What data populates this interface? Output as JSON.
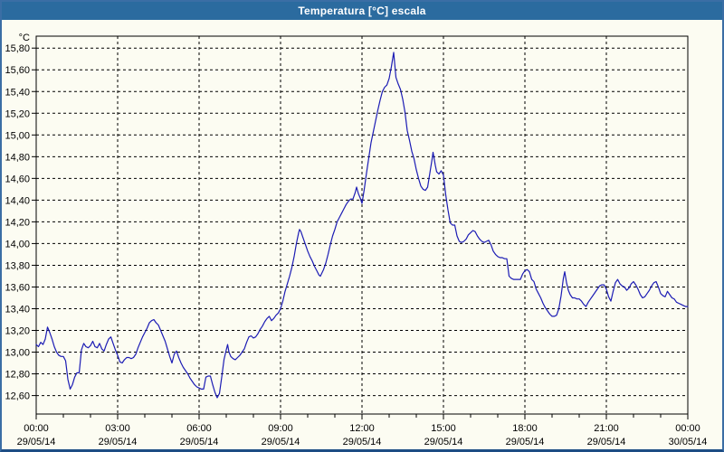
{
  "window": {
    "title": "Temperatura [°C] escala"
  },
  "chart_data": {
    "type": "line",
    "title": "Temperatura [°C] escala",
    "y_unit_label": "°C",
    "grid": "dashed",
    "legend": "none",
    "ylim": [
      12.43,
      15.91
    ],
    "xlim_minutes": [
      0,
      1440
    ],
    "x_minor_tick_minutes": 60,
    "y_ticks": {
      "values": [
        15.8,
        15.6,
        15.4,
        15.2,
        15.0,
        14.8,
        14.6,
        14.4,
        14.2,
        14.0,
        13.8,
        13.6,
        13.4,
        13.2,
        13.0,
        12.8,
        12.6
      ],
      "labels": [
        "15,80",
        "15,60",
        "15,40",
        "15,20",
        "15,00",
        "14,80",
        "14,60",
        "14,40",
        "14,20",
        "14,00",
        "13,80",
        "13,60",
        "13,40",
        "13,20",
        "13,00",
        "12,80",
        "12,60"
      ]
    },
    "x_ticks": [
      {
        "minutes": 0,
        "time": "00:00",
        "date": "29/05/14"
      },
      {
        "minutes": 180,
        "time": "03:00",
        "date": "29/05/14"
      },
      {
        "minutes": 360,
        "time": "06:00",
        "date": "29/05/14"
      },
      {
        "minutes": 540,
        "time": "09:00",
        "date": "29/05/14"
      },
      {
        "minutes": 720,
        "time": "12:00",
        "date": "29/05/14"
      },
      {
        "minutes": 900,
        "time": "15:00",
        "date": "29/05/14"
      },
      {
        "minutes": 1080,
        "time": "18:00",
        "date": "29/05/14"
      },
      {
        "minutes": 1260,
        "time": "21:00",
        "date": "29/05/14"
      },
      {
        "minutes": 1440,
        "time": "00:00",
        "date": "30/05/14"
      }
    ],
    "series": [
      {
        "name": "Temperatura",
        "color": "#1c1cb4",
        "points": [
          [
            0,
            13.07
          ],
          [
            5,
            13.05
          ],
          [
            10,
            13.09
          ],
          [
            15,
            13.07
          ],
          [
            20,
            13.12
          ],
          [
            25,
            13.23
          ],
          [
            30,
            13.18
          ],
          [
            35,
            13.12
          ],
          [
            40,
            13.05
          ],
          [
            45,
            13.0
          ],
          [
            50,
            12.97
          ],
          [
            55,
            12.96
          ],
          [
            60,
            12.96
          ],
          [
            65,
            12.92
          ],
          [
            70,
            12.75
          ],
          [
            75,
            12.66
          ],
          [
            80,
            12.7
          ],
          [
            85,
            12.77
          ],
          [
            90,
            12.81
          ],
          [
            95,
            12.81
          ],
          [
            100,
            13.02
          ],
          [
            105,
            13.08
          ],
          [
            110,
            13.05
          ],
          [
            115,
            13.04
          ],
          [
            120,
            13.06
          ],
          [
            125,
            13.1
          ],
          [
            130,
            13.05
          ],
          [
            135,
            13.04
          ],
          [
            140,
            13.08
          ],
          [
            145,
            13.03
          ],
          [
            150,
            13.01
          ],
          [
            155,
            13.07
          ],
          [
            160,
            13.12
          ],
          [
            165,
            13.14
          ],
          [
            170,
            13.08
          ],
          [
            175,
            13.02
          ],
          [
            180,
            12.97
          ],
          [
            185,
            12.91
          ],
          [
            190,
            12.9
          ],
          [
            195,
            12.93
          ],
          [
            200,
            12.95
          ],
          [
            205,
            12.95
          ],
          [
            210,
            12.94
          ],
          [
            215,
            12.95
          ],
          [
            220,
            12.98
          ],
          [
            225,
            13.04
          ],
          [
            230,
            13.09
          ],
          [
            235,
            13.14
          ],
          [
            240,
            13.18
          ],
          [
            245,
            13.22
          ],
          [
            250,
            13.27
          ],
          [
            255,
            13.29
          ],
          [
            260,
            13.3
          ],
          [
            265,
            13.27
          ],
          [
            270,
            13.25
          ],
          [
            275,
            13.2
          ],
          [
            280,
            13.15
          ],
          [
            285,
            13.1
          ],
          [
            290,
            13.03
          ],
          [
            295,
            12.96
          ],
          [
            300,
            12.9
          ],
          [
            305,
            12.98
          ],
          [
            310,
            13.01
          ],
          [
            315,
            12.95
          ],
          [
            320,
            12.9
          ],
          [
            325,
            12.86
          ],
          [
            330,
            12.83
          ],
          [
            335,
            12.8
          ],
          [
            340,
            12.76
          ],
          [
            345,
            12.73
          ],
          [
            350,
            12.7
          ],
          [
            355,
            12.68
          ],
          [
            360,
            12.67
          ],
          [
            365,
            12.66
          ],
          [
            370,
            12.66
          ],
          [
            375,
            12.77
          ],
          [
            380,
            12.78
          ],
          [
            385,
            12.78
          ],
          [
            390,
            12.7
          ],
          [
            395,
            12.63
          ],
          [
            400,
            12.58
          ],
          [
            405,
            12.62
          ],
          [
            410,
            12.77
          ],
          [
            415,
            12.93
          ],
          [
            420,
            13.02
          ],
          [
            423,
            13.07
          ],
          [
            426,
            13.0
          ],
          [
            430,
            12.96
          ],
          [
            435,
            12.94
          ],
          [
            440,
            12.93
          ],
          [
            445,
            12.95
          ],
          [
            450,
            12.97
          ],
          [
            455,
            13.0
          ],
          [
            460,
            13.03
          ],
          [
            465,
            13.09
          ],
          [
            470,
            13.14
          ],
          [
            475,
            13.15
          ],
          [
            480,
            13.13
          ],
          [
            485,
            13.14
          ],
          [
            490,
            13.17
          ],
          [
            495,
            13.21
          ],
          [
            500,
            13.24
          ],
          [
            505,
            13.28
          ],
          [
            510,
            13.31
          ],
          [
            515,
            13.33
          ],
          [
            520,
            13.29
          ],
          [
            525,
            13.31
          ],
          [
            530,
            13.34
          ],
          [
            535,
            13.36
          ],
          [
            540,
            13.4
          ],
          [
            545,
            13.47
          ],
          [
            550,
            13.56
          ],
          [
            555,
            13.63
          ],
          [
            560,
            13.7
          ],
          [
            565,
            13.78
          ],
          [
            570,
            13.88
          ],
          [
            575,
            14.0
          ],
          [
            580,
            14.1
          ],
          [
            582,
            14.13
          ],
          [
            585,
            14.11
          ],
          [
            590,
            14.05
          ],
          [
            595,
            13.99
          ],
          [
            600,
            13.93
          ],
          [
            605,
            13.88
          ],
          [
            610,
            13.84
          ],
          [
            615,
            13.79
          ],
          [
            620,
            13.75
          ],
          [
            625,
            13.71
          ],
          [
            628,
            13.7
          ],
          [
            635,
            13.76
          ],
          [
            640,
            13.82
          ],
          [
            645,
            13.9
          ],
          [
            650,
            13.99
          ],
          [
            655,
            14.07
          ],
          [
            660,
            14.13
          ],
          [
            665,
            14.2
          ],
          [
            670,
            14.24
          ],
          [
            675,
            14.28
          ],
          [
            680,
            14.32
          ],
          [
            685,
            14.36
          ],
          [
            690,
            14.39
          ],
          [
            695,
            14.41
          ],
          [
            700,
            14.41
          ],
          [
            705,
            14.47
          ],
          [
            708,
            14.52
          ],
          [
            712,
            14.46
          ],
          [
            716,
            14.42
          ],
          [
            720,
            14.37
          ],
          [
            725,
            14.5
          ],
          [
            730,
            14.65
          ],
          [
            735,
            14.79
          ],
          [
            740,
            14.93
          ],
          [
            745,
            15.03
          ],
          [
            750,
            15.13
          ],
          [
            755,
            15.23
          ],
          [
            760,
            15.32
          ],
          [
            765,
            15.4
          ],
          [
            770,
            15.44
          ],
          [
            775,
            15.46
          ],
          [
            780,
            15.52
          ],
          [
            785,
            15.63
          ],
          [
            790,
            15.76
          ],
          [
            795,
            15.53
          ],
          [
            800,
            15.47
          ],
          [
            805,
            15.42
          ],
          [
            810,
            15.33
          ],
          [
            815,
            15.21
          ],
          [
            820,
            15.04
          ],
          [
            825,
            14.95
          ],
          [
            830,
            14.85
          ],
          [
            835,
            14.78
          ],
          [
            840,
            14.68
          ],
          [
            845,
            14.6
          ],
          [
            850,
            14.53
          ],
          [
            855,
            14.5
          ],
          [
            860,
            14.49
          ],
          [
            865,
            14.52
          ],
          [
            870,
            14.65
          ],
          [
            875,
            14.78
          ],
          [
            877,
            14.84
          ],
          [
            882,
            14.72
          ],
          [
            885,
            14.66
          ],
          [
            890,
            14.64
          ],
          [
            895,
            14.67
          ],
          [
            900,
            14.63
          ],
          [
            905,
            14.45
          ],
          [
            910,
            14.31
          ],
          [
            915,
            14.19
          ],
          [
            920,
            14.17
          ],
          [
            925,
            14.17
          ],
          [
            930,
            14.07
          ],
          [
            935,
            14.02
          ],
          [
            940,
            14.01
          ],
          [
            945,
            14.02
          ],
          [
            950,
            14.04
          ],
          [
            955,
            14.08
          ],
          [
            960,
            14.1
          ],
          [
            965,
            14.12
          ],
          [
            970,
            14.11
          ],
          [
            975,
            14.07
          ],
          [
            980,
            14.04
          ],
          [
            985,
            14.02
          ],
          [
            990,
            14.01
          ],
          [
            995,
            14.02
          ],
          [
            1000,
            14.03
          ],
          [
            1005,
            13.99
          ],
          [
            1010,
            13.93
          ],
          [
            1015,
            13.9
          ],
          [
            1020,
            13.88
          ],
          [
            1025,
            13.87
          ],
          [
            1030,
            13.87
          ],
          [
            1035,
            13.86
          ],
          [
            1040,
            13.86
          ],
          [
            1045,
            13.7
          ],
          [
            1050,
            13.68
          ],
          [
            1055,
            13.67
          ],
          [
            1060,
            13.67
          ],
          [
            1065,
            13.67
          ],
          [
            1070,
            13.67
          ],
          [
            1075,
            13.72
          ],
          [
            1080,
            13.75
          ],
          [
            1085,
            13.76
          ],
          [
            1090,
            13.74
          ],
          [
            1095,
            13.67
          ],
          [
            1100,
            13.65
          ],
          [
            1105,
            13.58
          ],
          [
            1110,
            13.54
          ],
          [
            1115,
            13.5
          ],
          [
            1120,
            13.45
          ],
          [
            1125,
            13.41
          ],
          [
            1130,
            13.38
          ],
          [
            1135,
            13.35
          ],
          [
            1140,
            13.33
          ],
          [
            1145,
            13.33
          ],
          [
            1150,
            13.34
          ],
          [
            1155,
            13.4
          ],
          [
            1160,
            13.52
          ],
          [
            1165,
            13.68
          ],
          [
            1168,
            13.74
          ],
          [
            1172,
            13.64
          ],
          [
            1176,
            13.57
          ],
          [
            1180,
            13.53
          ],
          [
            1185,
            13.5
          ],
          [
            1190,
            13.5
          ],
          [
            1195,
            13.49
          ],
          [
            1200,
            13.49
          ],
          [
            1205,
            13.47
          ],
          [
            1210,
            13.44
          ],
          [
            1215,
            13.42
          ],
          [
            1220,
            13.46
          ],
          [
            1225,
            13.49
          ],
          [
            1230,
            13.52
          ],
          [
            1235,
            13.55
          ],
          [
            1240,
            13.58
          ],
          [
            1245,
            13.61
          ],
          [
            1250,
            13.62
          ],
          [
            1255,
            13.62
          ],
          [
            1260,
            13.58
          ],
          [
            1265,
            13.51
          ],
          [
            1270,
            13.47
          ],
          [
            1275,
            13.56
          ],
          [
            1280,
            13.64
          ],
          [
            1285,
            13.67
          ],
          [
            1290,
            13.63
          ],
          [
            1295,
            13.61
          ],
          [
            1300,
            13.6
          ],
          [
            1305,
            13.57
          ],
          [
            1310,
            13.59
          ],
          [
            1315,
            13.63
          ],
          [
            1320,
            13.65
          ],
          [
            1325,
            13.62
          ],
          [
            1330,
            13.58
          ],
          [
            1335,
            13.53
          ],
          [
            1340,
            13.5
          ],
          [
            1345,
            13.51
          ],
          [
            1350,
            13.54
          ],
          [
            1355,
            13.57
          ],
          [
            1360,
            13.61
          ],
          [
            1365,
            13.64
          ],
          [
            1370,
            13.65
          ],
          [
            1375,
            13.6
          ],
          [
            1380,
            13.54
          ],
          [
            1385,
            13.52
          ],
          [
            1390,
            13.51
          ],
          [
            1395,
            13.56
          ],
          [
            1400,
            13.53
          ],
          [
            1405,
            13.5
          ],
          [
            1410,
            13.49
          ],
          [
            1415,
            13.46
          ],
          [
            1420,
            13.45
          ],
          [
            1425,
            13.44
          ],
          [
            1430,
            13.43
          ],
          [
            1435,
            13.42
          ],
          [
            1440,
            13.42
          ]
        ]
      }
    ],
    "colors": {
      "titlebar_bg": "#2b6b9f",
      "titlebar_text": "#ffffff",
      "window_border": "#3b6ea5",
      "window_border_bottom": "#1d4d84",
      "plot_bg": "#fcfcf2",
      "grid": "#000000",
      "frame": "#000000",
      "line": "#1c1cb4"
    }
  }
}
